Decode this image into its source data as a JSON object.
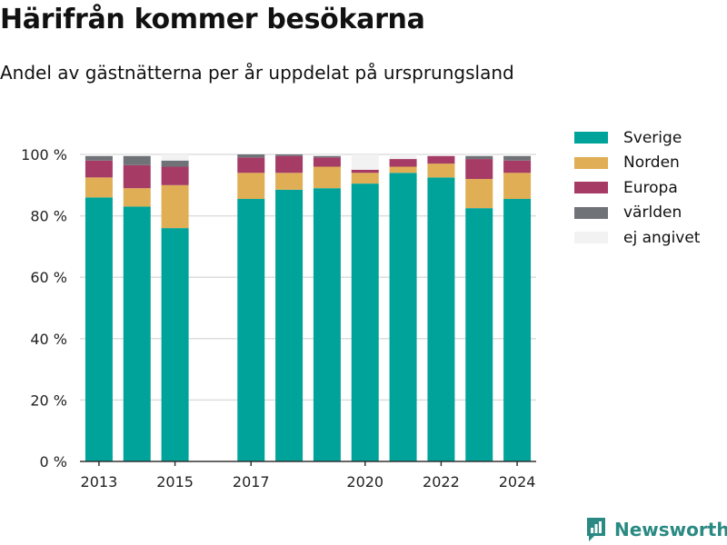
{
  "title": "Härifrån kommer besökarna",
  "subtitle": "Andel av gästnätterna per år uppdelat på ursprungsland",
  "brand": "Newsworthy",
  "colors": {
    "Sverige": "#00a39a",
    "Norden": "#e0ae55",
    "Europa": "#a63c66",
    "världen": "#6f7378",
    "ej angivet": "#f2f2f2"
  },
  "chart_data": {
    "type": "bar",
    "stacked": true,
    "categories": [
      2013,
      2014,
      2015,
      2017,
      2018,
      2019,
      2020,
      2021,
      2022,
      2023,
      2024
    ],
    "x_ticks": [
      "2013",
      "2015",
      "2017",
      "2020",
      "2022",
      "2024"
    ],
    "y_ticks": [
      "0 %",
      "20 %",
      "40 %",
      "60 %",
      "80 %",
      "100 %"
    ],
    "ylim": [
      0,
      100
    ],
    "grid": true,
    "legend_position": "right",
    "series": [
      {
        "name": "Sverige",
        "values": [
          86,
          83,
          76,
          85.5,
          88.5,
          89,
          90.5,
          94,
          92.5,
          82.5,
          85.5
        ]
      },
      {
        "name": "Norden",
        "values": [
          6.5,
          6,
          14,
          8.5,
          5.5,
          7,
          3.5,
          2,
          4.5,
          9.5,
          8.5
        ]
      },
      {
        "name": "Europa",
        "values": [
          5.5,
          7.5,
          6,
          5,
          5.5,
          3,
          1,
          2.5,
          2.5,
          6.5,
          4
        ]
      },
      {
        "name": "världen",
        "values": [
          1.5,
          3,
          2,
          1,
          0.5,
          0.5,
          0,
          0,
          0,
          1,
          1.5
        ]
      },
      {
        "name": "ej angivet",
        "values": [
          0.5,
          0.5,
          2,
          0,
          0,
          0.5,
          5,
          1.5,
          0.5,
          0.5,
          0.5
        ]
      }
    ]
  }
}
